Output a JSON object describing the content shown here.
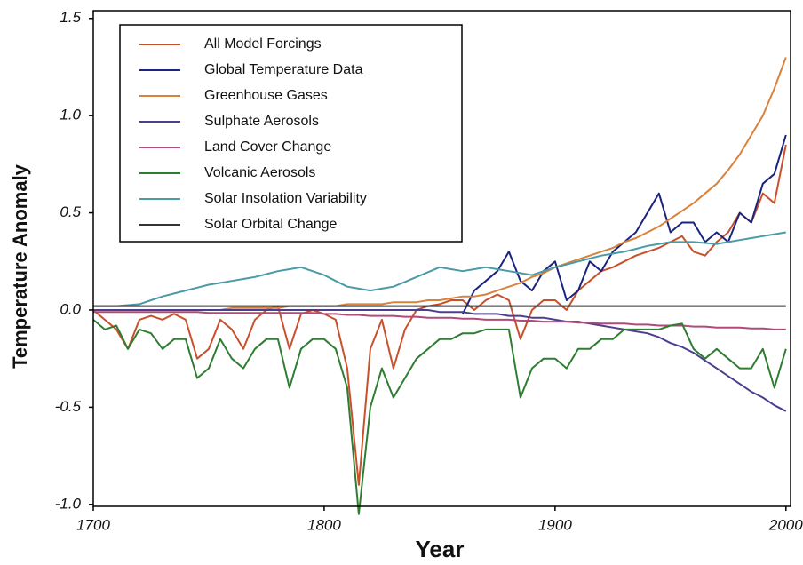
{
  "chart_data": {
    "type": "line",
    "x_label": "Year",
    "y_label": "Temperature Anomaly",
    "xlim": [
      1700,
      2002
    ],
    "ylim": [
      -1.01,
      1.54
    ],
    "xticks": [
      1700,
      1800,
      1900,
      2000
    ],
    "yticks": [
      {
        "value": -1,
        "label": "-1.0"
      },
      -0.5,
      {
        "value": 0,
        "label": "0.0"
      },
      0.5,
      {
        "value": 1,
        "label": "1.0"
      },
      1.5
    ],
    "legend": "top-left",
    "x": [
      1700,
      1705,
      1710,
      1715,
      1720,
      1725,
      1730,
      1735,
      1740,
      1745,
      1750,
      1755,
      1760,
      1765,
      1770,
      1775,
      1780,
      1785,
      1790,
      1795,
      1800,
      1805,
      1810,
      1815,
      1820,
      1825,
      1830,
      1835,
      1840,
      1845,
      1850,
      1855,
      1860,
      1865,
      1870,
      1875,
      1880,
      1885,
      1890,
      1895,
      1900,
      1905,
      1910,
      1915,
      1920,
      1925,
      1930,
      1935,
      1940,
      1945,
      1950,
      1955,
      1960,
      1965,
      1970,
      1975,
      1980,
      1985,
      1990,
      1995,
      2000
    ],
    "series": [
      {
        "name": "All Model Forcings",
        "color": "#c8502a",
        "values": [
          0.0,
          -0.05,
          -0.1,
          -0.2,
          -0.05,
          -0.03,
          -0.05,
          -0.02,
          -0.05,
          -0.25,
          -0.2,
          -0.05,
          -0.1,
          -0.2,
          -0.05,
          0.0,
          0.02,
          -0.2,
          -0.02,
          0.0,
          -0.02,
          -0.05,
          -0.3,
          -0.9,
          -0.2,
          -0.05,
          -0.3,
          -0.1,
          0.0,
          0.02,
          0.03,
          0.05,
          0.05,
          0.0,
          0.05,
          0.08,
          0.05,
          -0.15,
          0.0,
          0.05,
          0.05,
          0.0,
          0.1,
          0.15,
          0.2,
          0.22,
          0.25,
          0.28,
          0.3,
          0.32,
          0.35,
          0.38,
          0.3,
          0.28,
          0.35,
          0.4,
          0.5,
          0.45,
          0.6,
          0.55,
          0.85
        ]
      },
      {
        "name": "Global Temperature Data",
        "color": "#1a237e",
        "values": [
          null,
          null,
          null,
          null,
          null,
          null,
          null,
          null,
          null,
          null,
          null,
          null,
          null,
          null,
          null,
          null,
          null,
          null,
          null,
          null,
          null,
          null,
          null,
          null,
          null,
          null,
          null,
          null,
          null,
          null,
          null,
          null,
          -0.02,
          0.1,
          0.15,
          0.2,
          0.3,
          0.15,
          0.1,
          0.2,
          0.25,
          0.05,
          0.1,
          0.25,
          0.2,
          0.3,
          0.35,
          0.4,
          0.5,
          0.6,
          0.4,
          0.45,
          0.45,
          0.35,
          0.4,
          0.35,
          0.5,
          0.45,
          0.65,
          0.7,
          0.9
        ]
      },
      {
        "name": "Greenhouse Gases",
        "color": "#d9823b",
        "values": [
          0.0,
          0.0,
          0.0,
          0.0,
          0.0,
          0.0,
          0.0,
          0.0,
          0.0,
          0.0,
          0.0,
          0.0,
          0.01,
          0.01,
          0.01,
          0.01,
          0.01,
          0.02,
          0.02,
          0.02,
          0.02,
          0.02,
          0.03,
          0.03,
          0.03,
          0.03,
          0.04,
          0.04,
          0.04,
          0.05,
          0.05,
          0.06,
          0.07,
          0.07,
          0.08,
          0.1,
          0.12,
          0.14,
          0.17,
          0.19,
          0.22,
          0.24,
          0.26,
          0.28,
          0.3,
          0.32,
          0.35,
          0.37,
          0.4,
          0.43,
          0.47,
          0.51,
          0.55,
          0.6,
          0.65,
          0.72,
          0.8,
          0.9,
          1.0,
          1.14,
          1.3
        ]
      },
      {
        "name": "Sulphate Aerosols",
        "color": "#4a3f8f",
        "values": [
          0,
          0,
          0,
          0,
          0,
          0,
          0,
          0,
          0,
          0,
          0,
          0,
          0,
          0,
          0,
          0,
          0,
          0,
          0,
          0,
          0,
          0,
          0,
          0,
          0,
          0,
          0,
          0,
          0,
          0,
          -0.01,
          -0.01,
          -0.01,
          -0.02,
          -0.02,
          -0.02,
          -0.03,
          -0.03,
          -0.04,
          -0.04,
          -0.05,
          -0.06,
          -0.06,
          -0.07,
          -0.08,
          -0.09,
          -0.1,
          -0.11,
          -0.12,
          -0.14,
          -0.17,
          -0.19,
          -0.22,
          -0.26,
          -0.3,
          -0.34,
          -0.38,
          -0.42,
          -0.45,
          -0.49,
          -0.52
        ]
      },
      {
        "name": "Land Cover Change",
        "color": "#b04a7a",
        "values": [
          -0.01,
          -0.01,
          -0.01,
          -0.01,
          -0.01,
          -0.01,
          -0.01,
          -0.01,
          -0.01,
          -0.01,
          -0.015,
          -0.015,
          -0.015,
          -0.015,
          -0.015,
          -0.015,
          -0.015,
          -0.015,
          -0.015,
          -0.015,
          -0.02,
          -0.02,
          -0.025,
          -0.025,
          -0.03,
          -0.03,
          -0.03,
          -0.035,
          -0.035,
          -0.04,
          -0.04,
          -0.04,
          -0.045,
          -0.045,
          -0.05,
          -0.05,
          -0.05,
          -0.055,
          -0.055,
          -0.06,
          -0.06,
          -0.06,
          -0.065,
          -0.065,
          -0.07,
          -0.07,
          -0.07,
          -0.075,
          -0.075,
          -0.08,
          -0.08,
          -0.08,
          -0.085,
          -0.085,
          -0.09,
          -0.09,
          -0.09,
          -0.095,
          -0.095,
          -0.1,
          -0.1
        ]
      },
      {
        "name": "Volcanic Aerosols",
        "color": "#2e7d32",
        "values": [
          -0.05,
          -0.1,
          -0.08,
          -0.2,
          -0.1,
          -0.12,
          -0.2,
          -0.15,
          -0.15,
          -0.35,
          -0.3,
          -0.15,
          -0.25,
          -0.3,
          -0.2,
          -0.15,
          -0.15,
          -0.4,
          -0.2,
          -0.15,
          -0.15,
          -0.2,
          -0.4,
          -1.05,
          -0.5,
          -0.3,
          -0.45,
          -0.35,
          -0.25,
          -0.2,
          -0.15,
          -0.15,
          -0.12,
          -0.12,
          -0.1,
          -0.1,
          -0.1,
          -0.45,
          -0.3,
          -0.25,
          -0.25,
          -0.3,
          -0.2,
          -0.2,
          -0.15,
          -0.15,
          -0.1,
          -0.1,
          -0.1,
          -0.1,
          -0.08,
          -0.07,
          -0.2,
          -0.25,
          -0.2,
          -0.25,
          -0.3,
          -0.3,
          -0.2,
          -0.4,
          -0.2
        ]
      },
      {
        "name": "Solar Insolation Variability",
        "color": "#4a9aa8",
        "values": [
          0.02,
          0.02,
          0.02,
          0.025,
          0.03,
          0.05,
          0.07,
          0.085,
          0.1,
          0.115,
          0.13,
          0.14,
          0.15,
          0.16,
          0.17,
          0.185,
          0.2,
          0.21,
          0.22,
          0.2,
          0.18,
          0.15,
          0.12,
          0.11,
          0.1,
          0.11,
          0.12,
          0.145,
          0.17,
          0.195,
          0.22,
          0.21,
          0.2,
          0.21,
          0.22,
          0.21,
          0.2,
          0.19,
          0.18,
          0.2,
          0.22,
          0.235,
          0.25,
          0.265,
          0.28,
          0.29,
          0.3,
          0.315,
          0.33,
          0.34,
          0.35,
          0.35,
          0.35,
          0.345,
          0.34,
          0.35,
          0.36,
          0.37,
          0.38,
          0.39,
          0.4
        ]
      },
      {
        "name": "Solar Orbital Change",
        "color": "#333333",
        "values": [
          0.02,
          0.02,
          0.02,
          0.02,
          0.02,
          0.02,
          0.02,
          0.02,
          0.02,
          0.02,
          0.02,
          0.02,
          0.02,
          0.02,
          0.02,
          0.02,
          0.02,
          0.02,
          0.02,
          0.02,
          0.02,
          0.02,
          0.02,
          0.02,
          0.02,
          0.02,
          0.02,
          0.02,
          0.02,
          0.02,
          0.02,
          0.02,
          0.02,
          0.02,
          0.02,
          0.02,
          0.02,
          0.02,
          0.02,
          0.02,
          0.02,
          0.02,
          0.02,
          0.02,
          0.02,
          0.02,
          0.02,
          0.02,
          0.02,
          0.02,
          0.02,
          0.02,
          0.02,
          0.02,
          0.02,
          0.02,
          0.02,
          0.02,
          0.02,
          0.02,
          0.02
        ]
      }
    ]
  }
}
